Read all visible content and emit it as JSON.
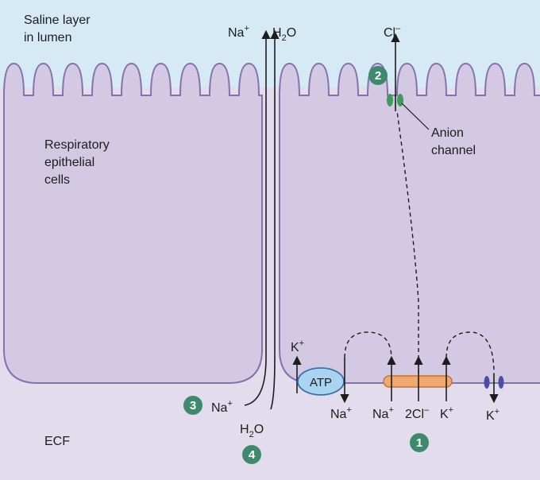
{
  "regions": {
    "lumen_line1": "Saline layer",
    "lumen_line2": "in lumen",
    "cells_line1": "Respiratory",
    "cells_line2": "epithelial",
    "cells_line3": "cells",
    "ecf": "ECF"
  },
  "ions": {
    "na": "Na",
    "plus": "+",
    "h": "H",
    "two": "2",
    "o": "O",
    "cl": "Cl",
    "minus": "–",
    "two_cl": "2Cl",
    "k": "K"
  },
  "labels": {
    "anion_line1": "Anion",
    "anion_line2": "channel",
    "atp": "ATP"
  },
  "steps": [
    "1",
    "2",
    "3",
    "4"
  ],
  "colors": {
    "lumen": "#d6eaf6",
    "cell_fill": "#d3c9e3",
    "cell_stroke": "#8472ad",
    "ecf": "#e3dcec",
    "badge": "#3f8a6d",
    "anion_channel": "#3e9a5a",
    "atp_fill": "#a9d4ef",
    "atp_stroke": "#3f6fa8",
    "cotransporter_fill": "#f0a86c",
    "cotransporter_stroke": "#c07432",
    "k_channel": "#4d4ea3"
  }
}
